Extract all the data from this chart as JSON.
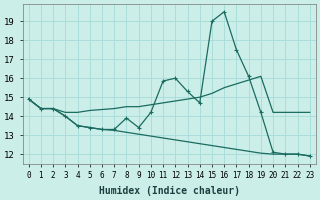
{
  "xlabel": "Humidex (Indice chaleur)",
  "background_color": "#cceee8",
  "grid_color": "#aaddda",
  "line_color": "#1a6b60",
  "xlim": [
    -0.5,
    23.5
  ],
  "ylim": [
    11.5,
    19.9
  ],
  "yticks": [
    12,
    13,
    14,
    15,
    16,
    17,
    18,
    19
  ],
  "xticks": [
    0,
    1,
    2,
    3,
    4,
    5,
    6,
    7,
    8,
    9,
    10,
    11,
    12,
    13,
    14,
    15,
    16,
    17,
    18,
    19,
    20,
    21,
    22,
    23
  ],
  "line1_x": [
    0,
    1,
    2,
    3,
    4,
    5,
    6,
    7,
    8,
    9,
    10,
    11,
    12,
    13,
    14,
    15,
    16,
    17,
    18,
    19,
    20,
    21,
    22,
    23
  ],
  "line1_y": [
    14.9,
    14.4,
    14.4,
    14.0,
    13.5,
    13.4,
    13.3,
    13.3,
    13.9,
    13.4,
    14.2,
    15.85,
    16.0,
    15.3,
    14.7,
    19.0,
    19.5,
    17.5,
    16.1,
    14.2,
    12.1,
    12.0,
    12.0,
    11.9
  ],
  "line2_x": [
    0,
    1,
    2,
    3,
    4,
    5,
    6,
    7,
    8,
    9,
    10,
    11,
    12,
    13,
    14,
    15,
    16,
    17,
    18,
    19,
    20,
    23
  ],
  "line2_y": [
    14.9,
    14.4,
    14.4,
    14.2,
    14.2,
    14.3,
    14.35,
    14.4,
    14.5,
    14.5,
    14.6,
    14.7,
    14.8,
    14.9,
    15.0,
    15.2,
    15.5,
    15.7,
    15.9,
    16.1,
    14.2,
    14.2
  ],
  "line3_x": [
    0,
    1,
    2,
    3,
    4,
    5,
    6,
    7,
    8,
    9,
    10,
    11,
    12,
    13,
    14,
    15,
    16,
    17,
    18,
    19,
    20,
    21,
    22,
    23
  ],
  "line3_y": [
    14.9,
    14.4,
    14.4,
    14.0,
    13.5,
    13.4,
    13.3,
    13.25,
    13.15,
    13.05,
    12.95,
    12.85,
    12.75,
    12.65,
    12.55,
    12.45,
    12.35,
    12.25,
    12.15,
    12.05,
    12.0,
    12.0,
    12.0,
    11.9
  ],
  "font_size": 7
}
